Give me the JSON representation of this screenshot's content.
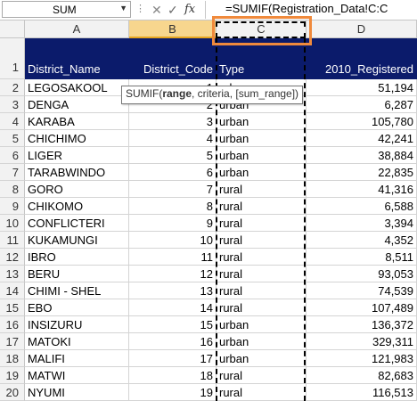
{
  "formula_bar": {
    "name_box": "SUM",
    "formula": "=SUMIF(Registration_Data!C:C"
  },
  "icons": {
    "name_box_dropdown": "chevron-down-icon",
    "cancel": "close-icon",
    "enter": "check-icon",
    "insert_function": "fx-icon"
  },
  "columns": [
    "A",
    "B",
    "C",
    "D"
  ],
  "header_row": {
    "row_number": "1",
    "district_name": "District_Name",
    "district_code": "District_Code",
    "type": "Type",
    "registered": "2010_Registered"
  },
  "tooltip": {
    "fn": "SUMIF(",
    "arg1": "range",
    "rest": ", criteria, [sum_range])"
  },
  "rows": [
    {
      "row": "2",
      "name": "LEGOSAKOOL",
      "code": "1",
      "type": "urban",
      "reg": "51,194"
    },
    {
      "row": "3",
      "name": "DENGA",
      "code": "2",
      "type": "urban",
      "reg": "6,287"
    },
    {
      "row": "4",
      "name": "KARABA",
      "code": "3",
      "type": "urban",
      "reg": "105,780"
    },
    {
      "row": "5",
      "name": "CHICHIMO",
      "code": "4",
      "type": "urban",
      "reg": "42,241"
    },
    {
      "row": "6",
      "name": "LIGER",
      "code": "5",
      "type": "urban",
      "reg": "38,884"
    },
    {
      "row": "7",
      "name": "TARABWINDO",
      "code": "6",
      "type": "urban",
      "reg": "22,835"
    },
    {
      "row": "8",
      "name": "GORO",
      "code": "7",
      "type": "rural",
      "reg": "41,316"
    },
    {
      "row": "9",
      "name": "CHIKOMO",
      "code": "8",
      "type": "rural",
      "reg": "6,588"
    },
    {
      "row": "10",
      "name": "CONFLICTERI",
      "code": "9",
      "type": "rural",
      "reg": "3,394"
    },
    {
      "row": "11",
      "name": "KUKAMUNGI",
      "code": "10",
      "type": "rural",
      "reg": "4,352"
    },
    {
      "row": "12",
      "name": "IBRO",
      "code": "11",
      "type": "rural",
      "reg": "8,511"
    },
    {
      "row": "13",
      "name": "BERU",
      "code": "12",
      "type": "rural",
      "reg": "93,053"
    },
    {
      "row": "14",
      "name": "CHIMI - SHEL",
      "code": "13",
      "type": "rural",
      "reg": "74,539"
    },
    {
      "row": "15",
      "name": "EBO",
      "code": "14",
      "type": "rural",
      "reg": "107,489"
    },
    {
      "row": "16",
      "name": "INSIZURU",
      "code": "15",
      "type": "urban",
      "reg": "136,372"
    },
    {
      "row": "17",
      "name": "MATOKI",
      "code": "16",
      "type": "urban",
      "reg": "329,311"
    },
    {
      "row": "18",
      "name": "MALIFI",
      "code": "17",
      "type": "urban",
      "reg": "121,983"
    },
    {
      "row": "19",
      "name": "MATWI",
      "code": "18",
      "type": "rural",
      "reg": "82,683"
    },
    {
      "row": "20",
      "name": "NYUMI",
      "code": "19",
      "type": "rural",
      "reg": "116,513"
    }
  ]
}
